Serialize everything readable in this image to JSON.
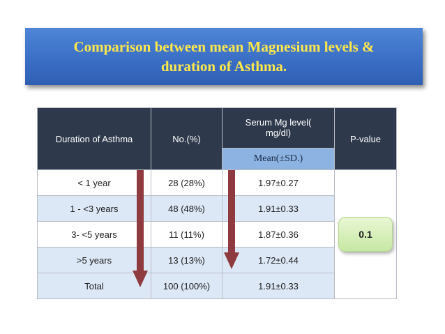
{
  "title": {
    "line1": "Comparison between mean Magnesium levels &",
    "line2": "duration of Asthma."
  },
  "table": {
    "headers": {
      "duration": "Duration of Asthma",
      "no": "No.(%)",
      "serum_line1": "Serum Mg level(",
      "serum_line2": "mg/dl)",
      "mean": "Mean(±SD.)",
      "pvalue": "P-value"
    },
    "rows": [
      {
        "duration": "< 1 year",
        "no": "28 (28%)",
        "mean": "1.97±0.27"
      },
      {
        "duration": "1 - <3 years",
        "no": "48 (48%)",
        "mean": "1.91±0.33"
      },
      {
        "duration": "3- <5 years",
        "no": "11 (11%)",
        "mean": "1.87±0.36"
      },
      {
        "duration": ">5 years",
        "no": "13 (13%)",
        "mean": "1.72±0.44"
      },
      {
        "duration": "Total",
        "no": "100 (100%)",
        "mean": "1.91±0.33"
      }
    ],
    "p_value": "0.1"
  },
  "colors": {
    "title_bg": "#3a6fc6",
    "title_text": "#ffe84a",
    "header_bg": "#2e3a4c",
    "subheader_bg": "#8db3e2",
    "arrow": "#8e3a3e",
    "pvalue_bg": "#c6e8a4"
  }
}
